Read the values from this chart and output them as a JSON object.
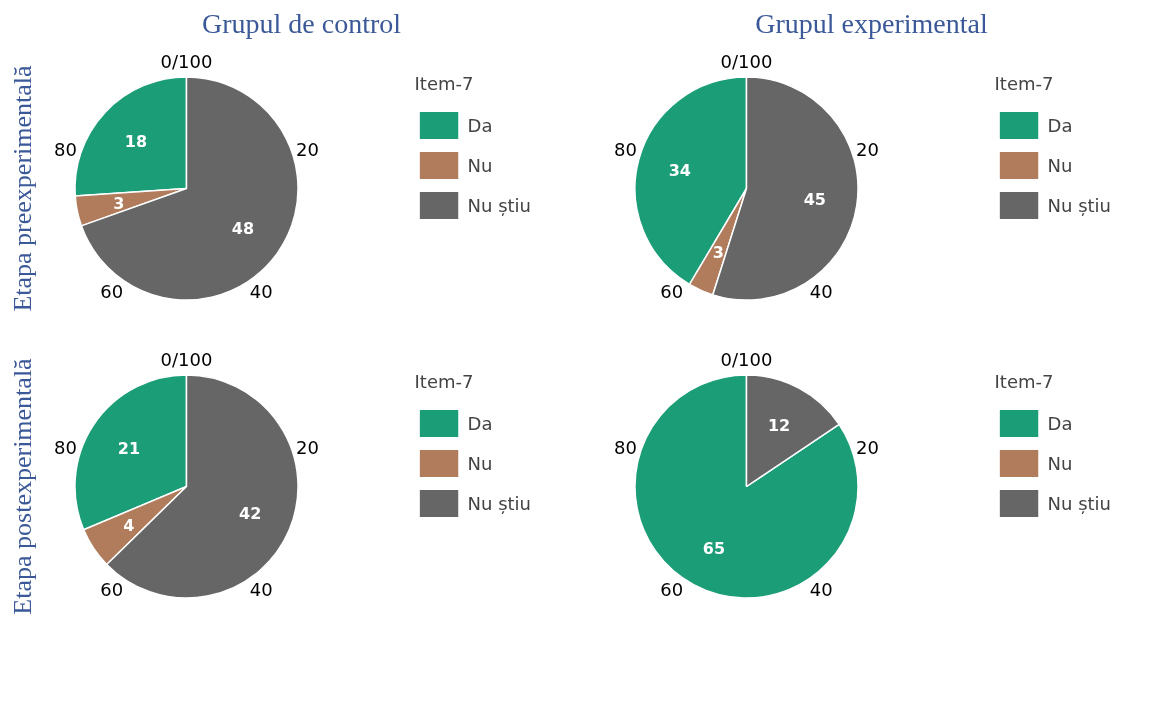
{
  "chart_data": [
    {
      "type": "pie",
      "title": "Grupul de control",
      "ylabel": "Etapa preexperimentală",
      "legend_title": "Item-7",
      "legend": "right",
      "categories": [
        "Da",
        "Nu",
        "Nu știu"
      ],
      "values": [
        18,
        3,
        48
      ],
      "colors": [
        "#1b9e77",
        "#b07c5c",
        "#666666"
      ],
      "value_labels": [
        "18",
        "3",
        "48"
      ],
      "annotations": [
        "0/100",
        "20",
        "40",
        "60",
        "80"
      ]
    },
    {
      "type": "pie",
      "title": "Grupul experimental",
      "legend_title": "Item-7",
      "legend": "right",
      "categories": [
        "Da",
        "Nu",
        "Nu știu"
      ],
      "values": [
        34,
        3,
        45
      ],
      "colors": [
        "#1b9e77",
        "#b07c5c",
        "#666666"
      ],
      "value_labels": [
        "34",
        "3",
        "45"
      ],
      "annotations": [
        "0/100",
        "20",
        "40",
        "60",
        "80"
      ]
    },
    {
      "type": "pie",
      "ylabel": "Etapa postexperimentală",
      "legend_title": "Item-7",
      "legend": "right",
      "categories": [
        "Da",
        "Nu",
        "Nu știu"
      ],
      "values": [
        21,
        4,
        42
      ],
      "colors": [
        "#1b9e77",
        "#b07c5c",
        "#666666"
      ],
      "value_labels": [
        "21",
        "4",
        "42"
      ],
      "annotations": [
        "0/100",
        "20",
        "40",
        "60",
        "80"
      ]
    },
    {
      "type": "pie",
      "legend_title": "Item-7",
      "legend": "right",
      "categories": [
        "Da",
        "Nu",
        "Nu știu"
      ],
      "values": [
        65,
        0,
        12
      ],
      "colors": [
        "#1b9e77",
        "#b07c5c",
        "#666666"
      ],
      "value_labels": [
        "65",
        null,
        "12"
      ],
      "annotations": [
        "0/100",
        "20",
        "40",
        "60",
        "80"
      ]
    }
  ]
}
